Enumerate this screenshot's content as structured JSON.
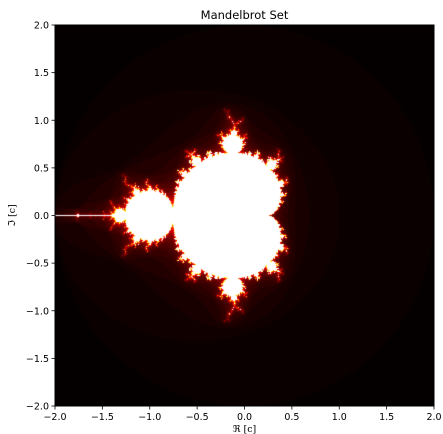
{
  "chart_data": {
    "type": "heatmap",
    "title": "Mandelbrot Set",
    "xlabel": "ℜ [c]",
    "ylabel": "ℑ [c]",
    "xlim": [
      -2.0,
      2.0
    ],
    "ylim": [
      -2.0,
      2.0
    ],
    "xticks": [
      -2.0,
      -1.5,
      -1.0,
      -0.5,
      0.0,
      0.5,
      1.0,
      1.5,
      2.0
    ],
    "yticks": [
      -2.0,
      -1.5,
      -1.0,
      -0.5,
      0.0,
      0.5,
      1.0,
      1.5,
      2.0
    ],
    "xtick_labels": [
      "−2.0",
      "−1.5",
      "−1.0",
      "−0.5",
      "0.0",
      "0.5",
      "1.0",
      "1.5",
      "2.0"
    ],
    "ytick_labels": [
      "−2.0",
      "−1.5",
      "−1.0",
      "−0.5",
      "0.0",
      "0.5",
      "1.0",
      "1.5",
      "2.0"
    ],
    "colormap": "hot",
    "set_color": "#ffffff",
    "background_color": "#000000",
    "grid": false
  }
}
